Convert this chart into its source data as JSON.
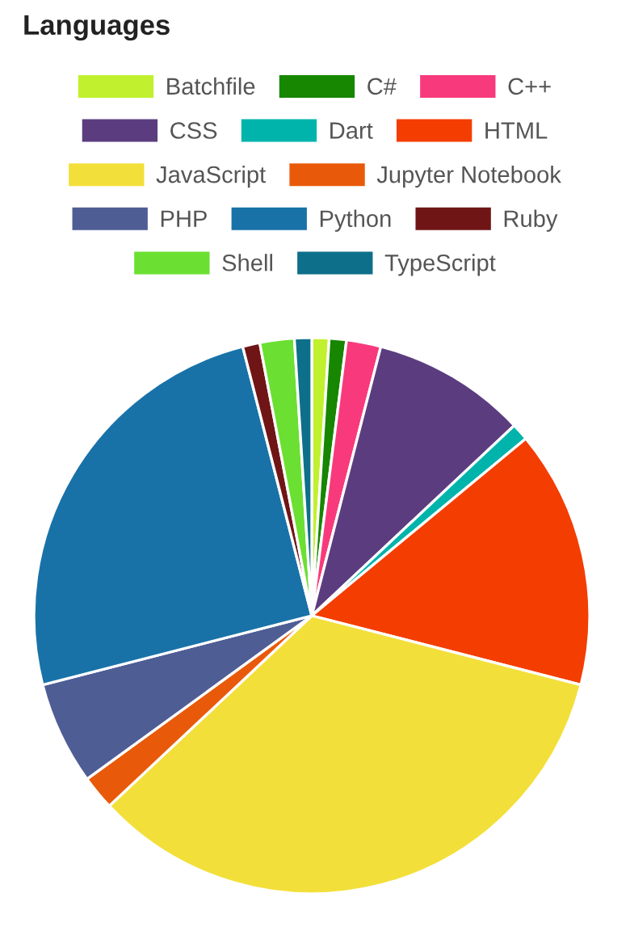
{
  "chart_data": {
    "type": "pie",
    "title": "Languages",
    "legend": "top",
    "categories": [
      "Batchfile",
      "C#",
      "C++",
      "CSS",
      "Dart",
      "HTML",
      "JavaScript",
      "Jupyter Notebook",
      "PHP",
      "Python",
      "Ruby",
      "Shell",
      "TypeScript"
    ],
    "values": [
      1,
      1,
      2,
      9,
      1,
      15,
      34,
      2,
      6,
      25,
      1,
      2,
      1
    ],
    "colors": [
      "#c1f12e",
      "#178600",
      "#f83a7d",
      "#5b3d7f",
      "#00b4ab",
      "#f43d00",
      "#f3df3a",
      "#e85a0a",
      "#4f5d95",
      "#1872a8",
      "#701516",
      "#6be032",
      "#0e6f8a"
    ]
  }
}
